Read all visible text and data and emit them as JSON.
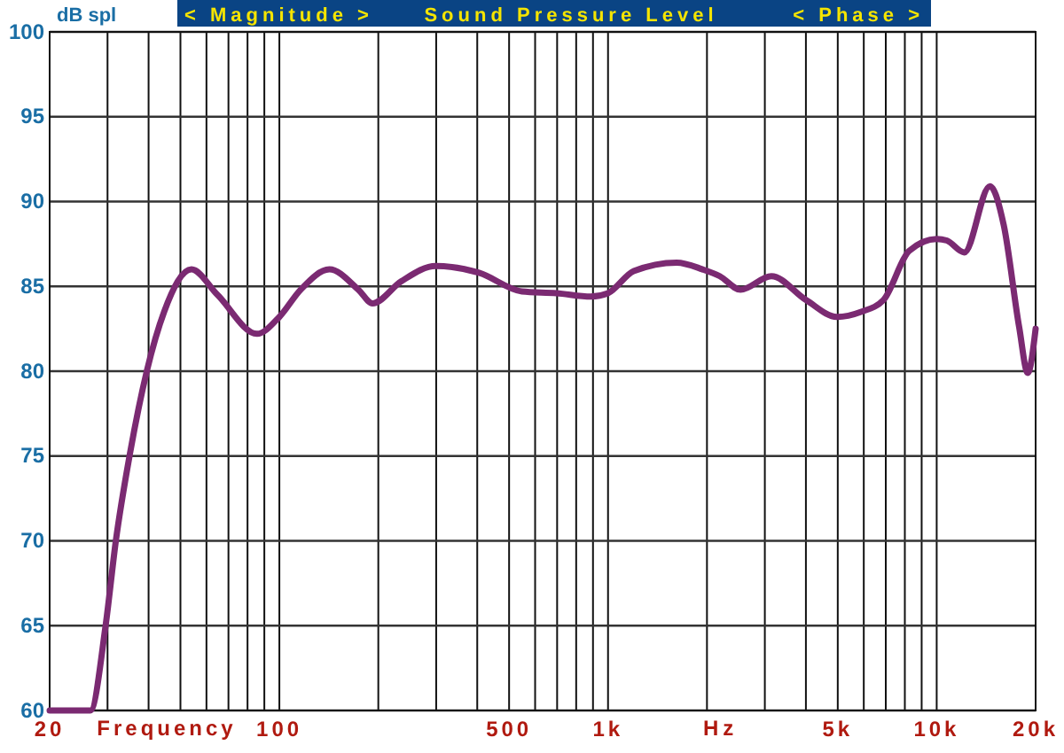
{
  "chart_data": {
    "type": "line",
    "title": "Sound Pressure Level",
    "annotations": [
      "< Magnitude >",
      "< Phase >",
      "Hz"
    ],
    "xlabel": "Frequency",
    "ylabel": "dB spl",
    "log": "x",
    "grid": true,
    "marker": "none",
    "line_style": "solid",
    "xlim": [
      20,
      20000
    ],
    "ylim": [
      60,
      100
    ],
    "xticks": [
      20,
      {
        "value": 30,
        "label": null
      },
      {
        "value": 40,
        "label": null
      },
      {
        "value": 50,
        "label": null
      },
      {
        "value": 60,
        "label": null
      },
      {
        "value": 70,
        "label": null
      },
      {
        "value": 80,
        "label": null
      },
      {
        "value": 90,
        "label": null
      },
      100,
      {
        "value": 200,
        "label": null
      },
      {
        "value": 300,
        "label": null
      },
      {
        "value": 400,
        "label": null
      },
      500,
      {
        "value": 600,
        "label": null
      },
      {
        "value": 700,
        "label": null
      },
      {
        "value": 800,
        "label": null
      },
      {
        "value": 900,
        "label": null
      },
      {
        "value": 1000,
        "label": "1k"
      },
      {
        "value": 2000,
        "label": null
      },
      {
        "value": 3000,
        "label": null
      },
      {
        "value": 4000,
        "label": null
      },
      {
        "value": 5000,
        "label": "5k"
      },
      {
        "value": 6000,
        "label": null
      },
      {
        "value": 7000,
        "label": null
      },
      {
        "value": 8000,
        "label": null
      },
      {
        "value": 9000,
        "label": null
      },
      {
        "value": 10000,
        "label": "10k"
      },
      {
        "value": 20000,
        "label": "20k"
      }
    ],
    "yticks": [
      60,
      65,
      70,
      75,
      80,
      85,
      90,
      95,
      100
    ],
    "series": [
      {
        "color": "#7b2a72",
        "x": [
          20,
          26.6,
          29.6,
          31.8,
          35,
          39.5,
          44.6,
          54,
          64.8,
          85.5,
          100,
          116,
          142,
          174,
          192,
          235,
          299,
          405,
          547,
          697,
          887,
          1000,
          1197,
          1618,
          1940,
          2188,
          2530,
          3140,
          4000,
          4970,
          5890,
          6890,
          8250,
          10000,
          10740,
          12130,
          14520,
          16000,
          17820,
          18930,
          20000
        ],
        "values": [
          60,
          60,
          65,
          70,
          75,
          80,
          83.5,
          86,
          84.5,
          82.2,
          83.2,
          84.8,
          86,
          84.8,
          84,
          85.3,
          86.2,
          85.8,
          84.7,
          84.6,
          84.4,
          84.6,
          85.9,
          86.4,
          86,
          85.6,
          84.8,
          85.6,
          84.2,
          83.2,
          83.5,
          84.2,
          87.1,
          87.8,
          87.7,
          87,
          90.9,
          88.6,
          82.6,
          79.9,
          82.5
        ]
      }
    ]
  }
}
